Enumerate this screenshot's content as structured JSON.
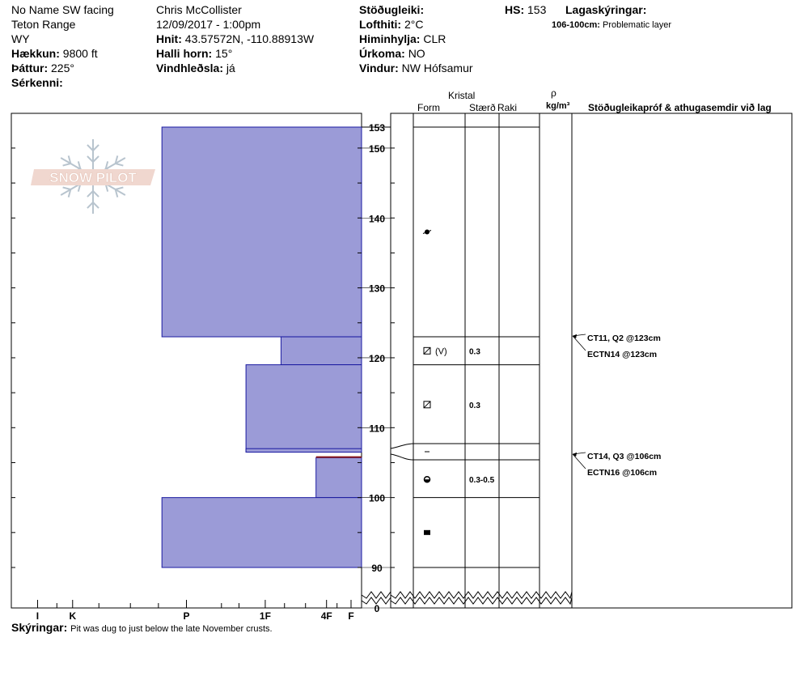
{
  "header": {
    "location": "No Name SW facing",
    "range": "Teton Range",
    "state": "WY",
    "elevation_label": "Hækkun:",
    "elevation_value": "9800 ft",
    "aspect_label": "Þáttur:",
    "aspect_value": "225°",
    "features_label": "Sérkenni:",
    "observer": "Chris McCollister",
    "datetime": "12/09/2017 - 1:00pm",
    "coords_label": "Hnit:",
    "coords_value": "43.57572N, -110.88913W",
    "slope_label": "Halli horn:",
    "slope_value": "15°",
    "wind_loading_label": "Vindhleðsla:",
    "wind_loading_value": "já",
    "stability_label": "Stöðugleiki:",
    "air_temp_label": "Lofthiti:",
    "air_temp_value": "2°C",
    "sky_label": "Himinhylja:",
    "sky_value": "CLR",
    "precip_label": "Úrkoma:",
    "precip_value": "NO",
    "wind_label": "Vindur:",
    "wind_value": "NW Hófsamur",
    "hs_label": "HS:",
    "hs_value": "153",
    "layer_notes_label": "Lagaskýringar:",
    "layer_note_range": "106-100cm:",
    "layer_note_text": "Problematic layer"
  },
  "columns": {
    "crystal": "Kristal",
    "form": "Form",
    "size": "Stærð",
    "moisture": "Raki",
    "rho": "ρ",
    "density_unit": "kg/m³",
    "tests": "Stöðugleikapróf & athugasemdir við lag"
  },
  "logo": {
    "text": "SNOW PILOT"
  },
  "footer": {
    "label": "Skýringar:",
    "text": "Pit was dug to just below the late November crusts."
  },
  "colors": {
    "hardness_fill": "#9b9bd7",
    "hardness_stroke": "#1a1aa0",
    "critical_line": "#8b1a1a",
    "logo_fill": "#f0d7cf",
    "logo_flake": "#b8c4ce"
  },
  "chart_data": {
    "type": "bar",
    "hs": 153,
    "hardness_axis": {
      "labels": [
        "I",
        "K",
        "P",
        "1F",
        "4F",
        "F"
      ],
      "positions": [
        0.925,
        0.825,
        0.5,
        0.275,
        0.1,
        0.03
      ]
    },
    "depth_axis": {
      "ticks": [
        0,
        90,
        100,
        110,
        120,
        130,
        140,
        150,
        153
      ],
      "break_below": 90
    },
    "layers": [
      {
        "top": 153,
        "bottom": 123,
        "hardness_frac": 0.57
      },
      {
        "top": 123,
        "bottom": 119,
        "hardness_frac": 0.23
      },
      {
        "top": 119,
        "bottom": 106.5,
        "hardness_frac": 0.33
      },
      {
        "top": 107,
        "bottom": 106.5,
        "hardness_frac": 0.33
      },
      {
        "top": 105.7,
        "bottom": 100,
        "hardness_frac": 0.13
      },
      {
        "top": 100,
        "bottom": 90,
        "hardness_frac": 0.57
      }
    ],
    "critical_layer": {
      "depth": 105.8
    },
    "grain_boundaries": [
      153,
      123,
      119,
      107.7,
      105.3,
      100,
      90
    ],
    "grains": [
      {
        "depth": 138,
        "form": "precip-particle",
        "size": ""
      },
      {
        "depth": 121,
        "form": "faceted-rounded",
        "form_extra": "(V)",
        "size": "0.3"
      },
      {
        "depth": 113.3,
        "form": "faceted-rounded",
        "size": "0.3"
      },
      {
        "depth": 106.5,
        "form": "crust",
        "size": ""
      },
      {
        "depth": 102.6,
        "form": "depth-hoar",
        "size": "0.3-0.5"
      },
      {
        "depth": 95,
        "form": "melt-freeze-crust",
        "size": ""
      }
    ],
    "tests": [
      {
        "depth": 123,
        "label": "CT11, Q2 @123cm"
      },
      {
        "depth": 123,
        "label": "ECTN14 @123cm"
      },
      {
        "depth": 106,
        "label": "CT14, Q3 @106cm"
      },
      {
        "depth": 106,
        "label": "ECTN16 @106cm"
      }
    ]
  }
}
